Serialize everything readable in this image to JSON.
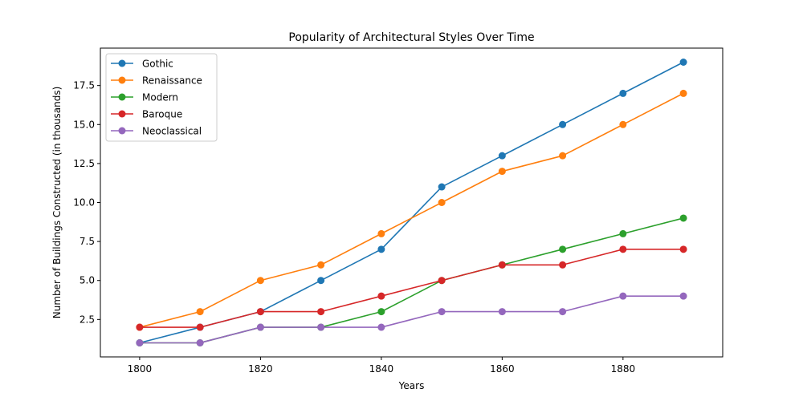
{
  "chart_data": {
    "type": "line",
    "title": "Popularity of Architectural Styles Over Time",
    "xlabel": "Years",
    "ylabel": "Number of Buildings Constructed (in thousands)",
    "x": [
      1800,
      1810,
      1820,
      1830,
      1840,
      1850,
      1860,
      1870,
      1880,
      1890
    ],
    "xlim": [
      1793.5,
      1896.5
    ],
    "ylim": [
      0.1,
      19.9
    ],
    "xticks": [
      1800,
      1820,
      1840,
      1860,
      1880
    ],
    "xtick_labels": [
      "1800",
      "1820",
      "1840",
      "1860",
      "1880"
    ],
    "yticks": [
      2.5,
      5.0,
      7.5,
      10.0,
      12.5,
      15.0,
      17.5
    ],
    "ytick_labels": [
      "2.5",
      "5.0",
      "7.5",
      "10.0",
      "12.5",
      "15.0",
      "17.5"
    ],
    "grid": false,
    "legend_position": "top-left",
    "series": [
      {
        "name": "Gothic",
        "color": "#1f77b4",
        "marker": "circle",
        "values": [
          1,
          2,
          3,
          5,
          7,
          11,
          13,
          15,
          17,
          19
        ]
      },
      {
        "name": "Renaissance",
        "color": "#ff7f0e",
        "marker": "circle",
        "values": [
          2,
          3,
          5,
          6,
          8,
          10,
          12,
          13,
          15,
          17
        ]
      },
      {
        "name": "Modern",
        "color": "#2ca02c",
        "marker": "circle",
        "values": [
          1,
          1,
          2,
          2,
          3,
          5,
          6,
          7,
          8,
          9
        ]
      },
      {
        "name": "Baroque",
        "color": "#d62728",
        "marker": "circle",
        "values": [
          2,
          2,
          3,
          3,
          4,
          5,
          6,
          6,
          7,
          7
        ]
      },
      {
        "name": "Neoclassical",
        "color": "#9467bd",
        "marker": "circle",
        "values": [
          1,
          1,
          2,
          2,
          2,
          3,
          3,
          3,
          4,
          4
        ]
      }
    ]
  }
}
